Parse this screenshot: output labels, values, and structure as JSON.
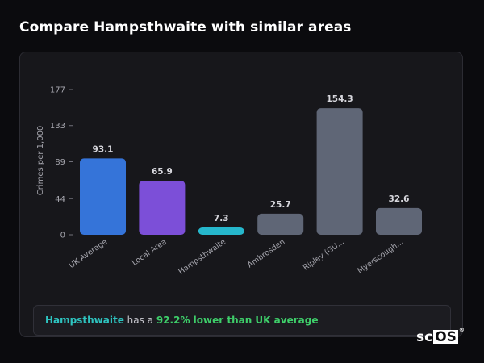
{
  "page_title": "Compare Hampsthwaite with similar areas",
  "chart_data": {
    "type": "bar",
    "ylabel": "Crimes per 1,000",
    "xlabel": "",
    "yticks": [
      0,
      44,
      89,
      133,
      177
    ],
    "ylim": [
      0,
      177
    ],
    "grid": false,
    "categories": [
      "UK Average",
      "Local Area",
      "Hampsthwaite",
      "Ambrosden",
      "Ripley (GU...",
      "Myerscough..."
    ],
    "values": [
      93.1,
      65.9,
      7.3,
      25.7,
      154.3,
      32.6
    ],
    "value_labels": [
      "93.1",
      "65.9",
      "7.3",
      "25.7",
      "154.3",
      "32.6"
    ],
    "colors": [
      "#3574d9",
      "#7c4fd8",
      "#26b7cc",
      "#5f6676",
      "#5f6676",
      "#5f6676"
    ]
  },
  "summary": {
    "area": "Hampsthwaite",
    "middle": " has a ",
    "stat": "92.2% lower than UK average"
  },
  "logo": {
    "prefix": "sc",
    "boxed": "OS",
    "mark": "®"
  }
}
